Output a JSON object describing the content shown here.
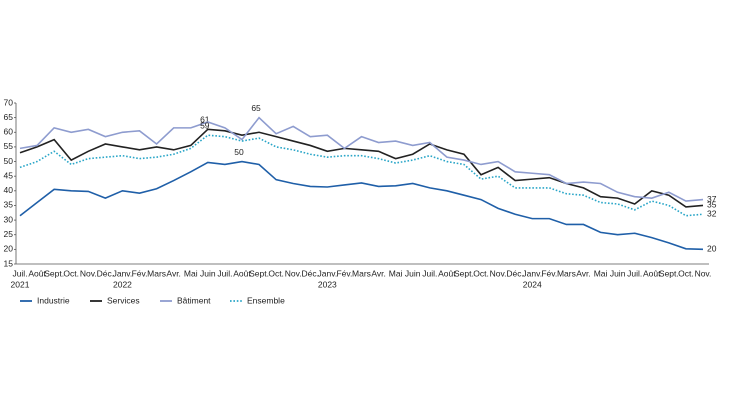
{
  "chart_data": {
    "type": "line",
    "categories": [
      "Juil.",
      "Août",
      "Sept.",
      "Oct.",
      "Nov.",
      "Déc.",
      "Janv.",
      "Fév.",
      "Mars",
      "Avr.",
      "Mai",
      "Juin",
      "Juil.",
      "Août",
      "Sept.",
      "Oct.",
      "Nov.",
      "Déc.",
      "Janv.",
      "Fév.",
      "Mars",
      "Avr.",
      "Mai",
      "Juin",
      "Juil.",
      "Août",
      "Sept.",
      "Oct.",
      "Nov.",
      "Déc.",
      "Janv.",
      "Fév.",
      "Mars",
      "Avr.",
      "Mai",
      "Juin",
      "Juil.",
      "Août",
      "Sept.",
      "Oct.",
      "Nov."
    ],
    "year_labels": [
      "2021",
      null,
      null,
      null,
      null,
      null,
      "2022",
      null,
      null,
      null,
      null,
      null,
      null,
      null,
      null,
      null,
      null,
      null,
      "2023",
      null,
      null,
      null,
      null,
      null,
      null,
      null,
      null,
      null,
      null,
      null,
      "2024",
      null,
      null,
      null,
      null,
      null,
      null,
      null,
      null,
      null,
      null
    ],
    "ylim": [
      15,
      70
    ],
    "yticks": [
      15,
      20,
      25,
      30,
      35,
      40,
      45,
      50,
      55,
      60,
      65,
      70
    ],
    "series": [
      {
        "name": "Industrie",
        "color": "#1f5fa8",
        "dash": false,
        "values": [
          31.5,
          36,
          40.5,
          40,
          39.8,
          37.5,
          40,
          39.2,
          40.7,
          43.5,
          46.5,
          49.7,
          49,
          50,
          49,
          43.8,
          42.5,
          41.5,
          41.3,
          42,
          42.7,
          41.5,
          41.7,
          42.5,
          41,
          40,
          38.5,
          37,
          34,
          32,
          30.5,
          30.5,
          28.5,
          28.5,
          25.8,
          25,
          25.5,
          24,
          22.2,
          20.2,
          20
        ],
        "value_labels": [
          null,
          null,
          null,
          null,
          null,
          null,
          null,
          null,
          null,
          null,
          null,
          null,
          null,
          "50",
          null,
          null,
          null,
          null,
          null,
          null,
          null,
          null,
          null,
          null,
          null,
          null,
          null,
          null,
          null,
          null,
          null,
          null,
          null,
          null,
          null,
          null,
          null,
          null,
          null,
          null,
          "20"
        ]
      },
      {
        "name": "Services",
        "color": "#222222",
        "dash": false,
        "values": [
          53,
          55,
          57.5,
          50.5,
          53.5,
          56,
          55,
          54,
          55,
          54,
          55.5,
          61,
          60.5,
          59,
          60,
          58.5,
          57,
          55.5,
          53.5,
          54.5,
          54,
          53.5,
          51,
          52.5,
          56,
          54,
          52.5,
          45.5,
          48,
          43.5,
          44,
          44.5,
          42.5,
          41,
          38,
          37.5,
          35.5,
          40,
          38.5,
          34.5,
          35
        ],
        "value_labels": [
          null,
          null,
          null,
          null,
          null,
          null,
          null,
          null,
          null,
          null,
          null,
          "61",
          null,
          null,
          null,
          null,
          null,
          null,
          null,
          null,
          null,
          null,
          null,
          null,
          null,
          null,
          null,
          null,
          null,
          null,
          null,
          null,
          null,
          null,
          null,
          null,
          null,
          null,
          null,
          null,
          "35"
        ]
      },
      {
        "name": "Bâtiment",
        "color": "#8e9ccf",
        "dash": false,
        "values": [
          54.5,
          55.5,
          61.5,
          60,
          61,
          58.5,
          60,
          60.5,
          56,
          61.5,
          61.5,
          63.5,
          61.5,
          57.5,
          65,
          59.5,
          62,
          58.5,
          59,
          54.5,
          58.5,
          56.5,
          57,
          55.5,
          56.5,
          51.5,
          50.5,
          49,
          50,
          46.5,
          46,
          45.5,
          42.5,
          43,
          42.5,
          39.5,
          38,
          37.5,
          39.5,
          36.5,
          37
        ],
        "value_labels": [
          null,
          null,
          null,
          null,
          null,
          null,
          null,
          null,
          null,
          null,
          null,
          null,
          null,
          null,
          "65",
          null,
          null,
          null,
          null,
          null,
          null,
          null,
          null,
          null,
          null,
          null,
          null,
          null,
          null,
          null,
          null,
          null,
          null,
          null,
          null,
          null,
          null,
          null,
          null,
          null,
          "37"
        ]
      },
      {
        "name": "Ensemble",
        "color": "#2aa6c8",
        "dash": true,
        "values": [
          48,
          50,
          53.5,
          49,
          51,
          51.5,
          52,
          51,
          51.5,
          52.5,
          54.5,
          59,
          58.5,
          57,
          58,
          55,
          54,
          52.5,
          51.5,
          52,
          52,
          51,
          49.5,
          50.5,
          52,
          50,
          49,
          44,
          45,
          41,
          41,
          41,
          39,
          38.5,
          36,
          35.5,
          33.5,
          36.5,
          35,
          31.5,
          32
        ],
        "value_labels": [
          null,
          null,
          null,
          null,
          null,
          null,
          null,
          null,
          null,
          null,
          null,
          "59",
          null,
          null,
          null,
          null,
          null,
          null,
          null,
          null,
          null,
          null,
          null,
          null,
          null,
          null,
          null,
          null,
          null,
          null,
          null,
          null,
          null,
          null,
          null,
          null,
          null,
          null,
          null,
          null,
          "32"
        ]
      }
    ]
  }
}
